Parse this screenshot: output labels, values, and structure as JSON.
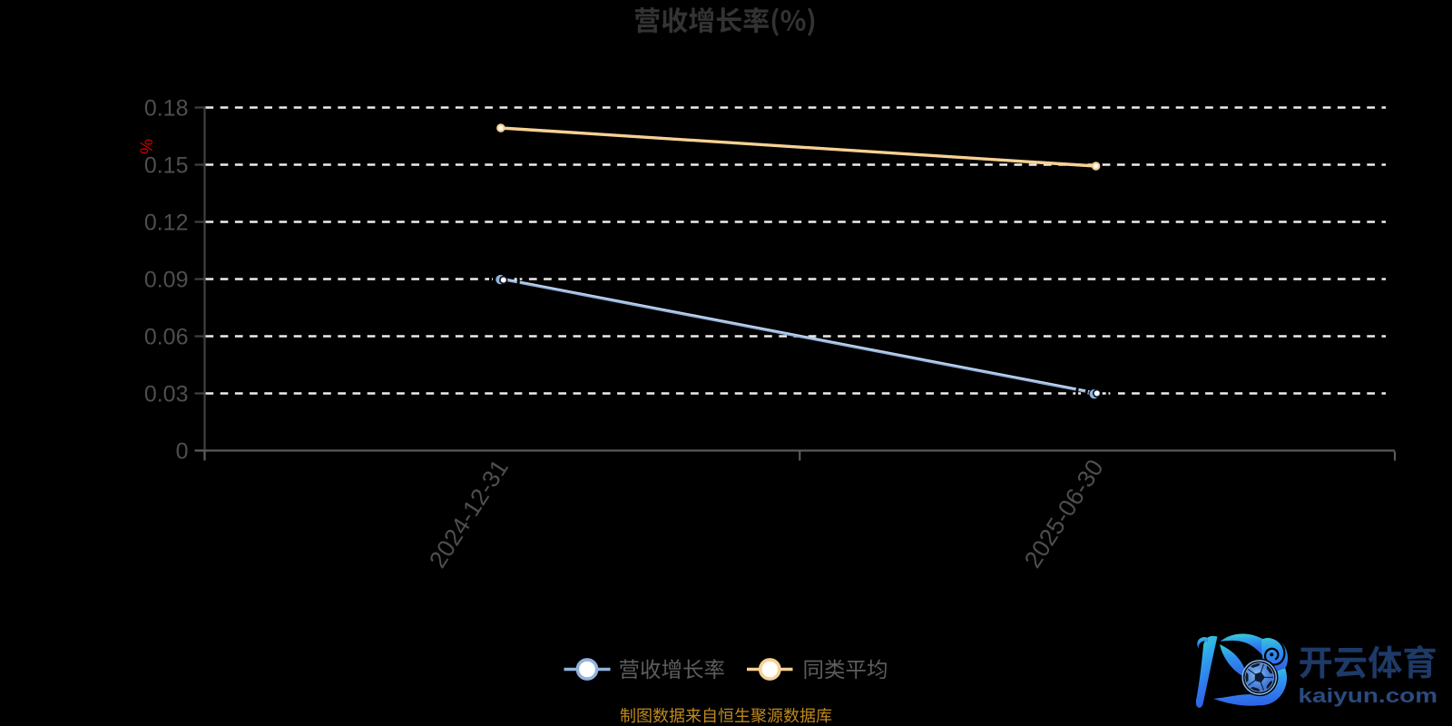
{
  "title": {
    "text": "营收增长率(%)"
  },
  "y_axis": {
    "name": "%",
    "name_color": "#cc0000",
    "tick_labels": [
      "0.18",
      "0.15",
      "0.12",
      "0.09",
      "0.06",
      "0.03",
      "0"
    ]
  },
  "x_axis": {
    "tick_labels": [
      "2024-12-31",
      "2025-06-30"
    ]
  },
  "legend": {
    "items": [
      {
        "label": "营收增长率",
        "color": "#92b3dd"
      },
      {
        "label": "同类平均",
        "color": "#f7d194"
      }
    ]
  },
  "footnote": {
    "text": "制图数据来自恒生聚源数据库",
    "color": "#bf8a1c"
  },
  "watermark": {
    "brand_name": "开云体育",
    "brand_site": "kaiyun.com"
  },
  "colors": {
    "background": "#000000",
    "title": "#333333",
    "axis_label": "#4e4e4e",
    "y_axis_line": "#414141",
    "x_axis_line": "#5a5a5a",
    "gridline": "#ededed",
    "series_blue": "#92b3dd",
    "series_blue_light": "#c3d6ef",
    "series_orange": "#f7d194",
    "marker_fill": "#ffffff",
    "legend_text": "#5d5d5d",
    "watermark_cn": "#1d3a68",
    "watermark_url": "#2a4b80"
  },
  "chart_data": {
    "type": "line",
    "categories": [
      "2024-12-31",
      "2025-06-30"
    ],
    "series": [
      {
        "name": "营收增长率",
        "values": [
          0.09,
          0.03
        ],
        "color": "#92b3dd"
      },
      {
        "name": "同类平均",
        "values": [
          0.17,
          0.15
        ],
        "color": "#f7d194"
      }
    ],
    "title": "营收增长率(%)",
    "ylabel": "%",
    "ylim": [
      0,
      0.18
    ],
    "y_tick_step": 0.03,
    "grid": true,
    "grid_style": "dashed",
    "legend_position": "bottom"
  }
}
